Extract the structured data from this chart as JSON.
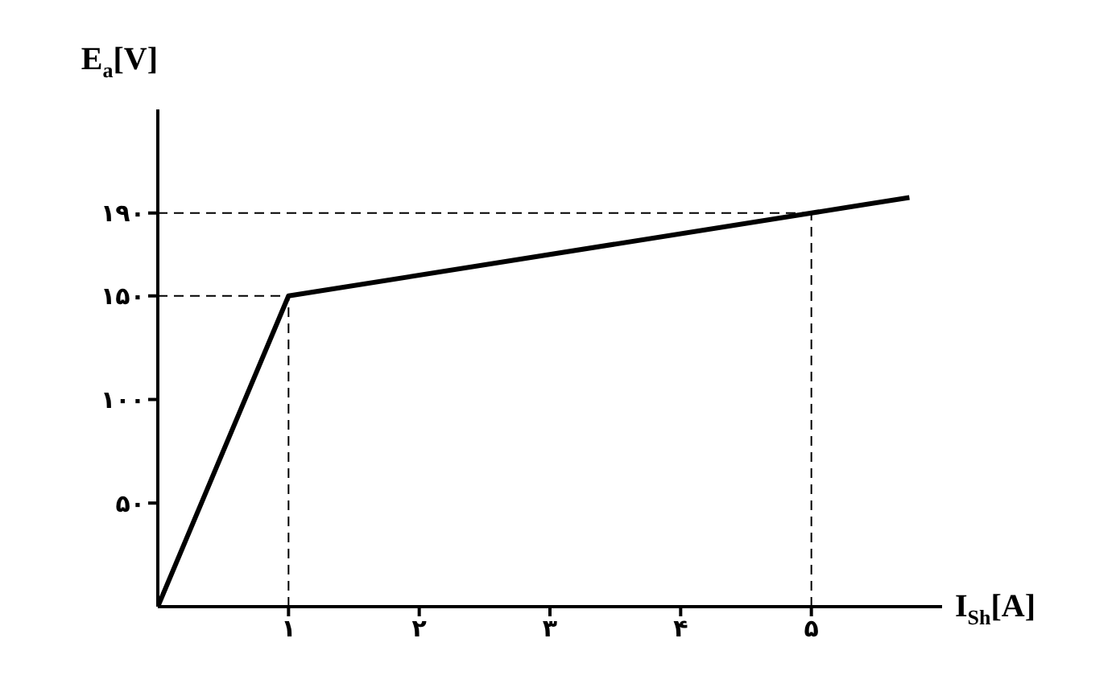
{
  "chart_data": {
    "type": "line",
    "xlabel": "I$_{Sh}$[A]",
    "ylabel": "E$_{a}$[V]",
    "x": [
      0,
      1,
      5,
      5.75
    ],
    "values": [
      0,
      150,
      190,
      197.5
    ],
    "color": "#000000",
    "xlim": [
      0,
      6
    ],
    "ylim": [
      0,
      240
    ],
    "xticks": [
      {
        "value": 1,
        "label": "۱"
      },
      {
        "value": 2,
        "label": "۲"
      },
      {
        "value": 3,
        "label": "۳"
      },
      {
        "value": 4,
        "label": "۴"
      },
      {
        "value": 5,
        "label": "۵"
      }
    ],
    "yticks": [
      {
        "value": 50,
        "label": "۵۰"
      },
      {
        "value": 100,
        "label": "۱۰۰"
      },
      {
        "value": 150,
        "label": "۱۵۰"
      },
      {
        "value": 190,
        "label": "۱۹۰"
      }
    ],
    "ref_lines": [
      {
        "axis": "x",
        "value": 1,
        "line_style": "dashed"
      },
      {
        "axis": "x",
        "value": 5,
        "line_style": "dashed"
      },
      {
        "axis": "y",
        "value": 150,
        "line_style": "dashed"
      },
      {
        "axis": "y",
        "value": 190,
        "line_style": "dashed"
      }
    ],
    "grid": false,
    "legend": false
  }
}
